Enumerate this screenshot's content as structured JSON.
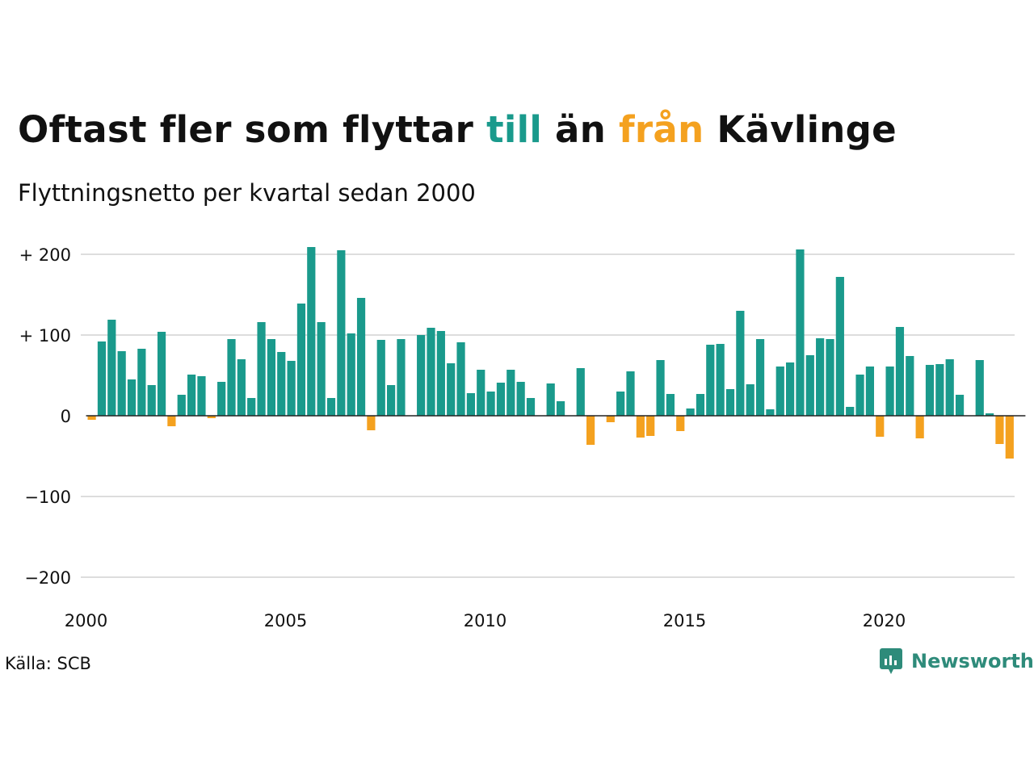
{
  "title": {
    "part1": "Oftast fler som flyttar ",
    "to_word": "till",
    "part2": " än ",
    "from_word": "från",
    "part3": " Kävlinge"
  },
  "subtitle": "Flyttningsnetto per kvartal sedan 2000",
  "source": "Källa: SCB",
  "brand": {
    "name": "Newsworthy",
    "icon": "newsworthy-logo-icon"
  },
  "colors": {
    "positive": "#1a9a8c",
    "negative": "#f4a11f",
    "grid": "#dddddd",
    "brand": "#2e8b7a"
  },
  "chart_data": {
    "type": "bar",
    "title": "Oftast fler som flyttar till än från Kävlinge",
    "subtitle": "Flyttningsnetto per kvartal sedan 2000",
    "xlabel": "",
    "ylabel": "",
    "ylim": [
      -200,
      200
    ],
    "yticks": [
      200,
      100,
      0,
      -100,
      -200
    ],
    "ytick_labels": [
      "+ 200",
      "+ 100",
      "0",
      "−100",
      "−200"
    ],
    "xticks": [
      "2000",
      "2005",
      "2010",
      "2015",
      "2020"
    ],
    "grid": true,
    "legend": "none",
    "start": "2000 Q1",
    "x": [
      "2000 Q1",
      "2000 Q2",
      "2000 Q3",
      "2000 Q4",
      "2001 Q1",
      "2001 Q2",
      "2001 Q3",
      "2001 Q4",
      "2002 Q1",
      "2002 Q2",
      "2002 Q3",
      "2002 Q4",
      "2003 Q1",
      "2003 Q2",
      "2003 Q3",
      "2003 Q4",
      "2004 Q1",
      "2004 Q2",
      "2004 Q3",
      "2004 Q4",
      "2005 Q1",
      "2005 Q2",
      "2005 Q3",
      "2005 Q4",
      "2006 Q1",
      "2006 Q2",
      "2006 Q3",
      "2006 Q4",
      "2007 Q1",
      "2007 Q2",
      "2007 Q3",
      "2007 Q4",
      "2008 Q1",
      "2008 Q2",
      "2008 Q3",
      "2008 Q4",
      "2009 Q1",
      "2009 Q2",
      "2009 Q3",
      "2009 Q4",
      "2010 Q1",
      "2010 Q2",
      "2010 Q3",
      "2010 Q4",
      "2011 Q1",
      "2011 Q2",
      "2011 Q3",
      "2011 Q4",
      "2012 Q1",
      "2012 Q2",
      "2012 Q3",
      "2012 Q4",
      "2013 Q1",
      "2013 Q2",
      "2013 Q3",
      "2013 Q4",
      "2014 Q1",
      "2014 Q2",
      "2014 Q3",
      "2014 Q4",
      "2015 Q1",
      "2015 Q2",
      "2015 Q3",
      "2015 Q4",
      "2016 Q1",
      "2016 Q2",
      "2016 Q3",
      "2016 Q4",
      "2017 Q1",
      "2017 Q2",
      "2017 Q3",
      "2017 Q4",
      "2018 Q1",
      "2018 Q2",
      "2018 Q3",
      "2018 Q4",
      "2019 Q1",
      "2019 Q2",
      "2019 Q3",
      "2019 Q4",
      "2020 Q1",
      "2020 Q2",
      "2020 Q3",
      "2020 Q4",
      "2021 Q1",
      "2021 Q2",
      "2021 Q3",
      "2021 Q4",
      "2022 Q1",
      "2022 Q2",
      "2022 Q3",
      "2022 Q4",
      "2023 Q1",
      "2023 Q2"
    ],
    "values": [
      -5,
      92,
      119,
      80,
      45,
      83,
      38,
      104,
      -13,
      26,
      51,
      49,
      -3,
      42,
      95,
      70,
      22,
      116,
      95,
      79,
      68,
      139,
      209,
      116,
      22,
      205,
      102,
      146,
      -18,
      94,
      38,
      95,
      0,
      100,
      109,
      105,
      65,
      91,
      28,
      57,
      30,
      41,
      57,
      42,
      22,
      0,
      40,
      18,
      0,
      59,
      -36,
      0,
      -8,
      30,
      55,
      -27,
      -25,
      69,
      27,
      -19,
      9,
      27,
      88,
      89,
      33,
      130,
      39,
      95,
      8,
      61,
      66,
      206,
      75,
      96,
      95,
      172,
      11,
      51,
      61,
      -26,
      61,
      110,
      74,
      -28,
      63,
      64,
      70,
      26,
      0,
      69,
      3,
      -35,
      -53,
      0
    ]
  }
}
